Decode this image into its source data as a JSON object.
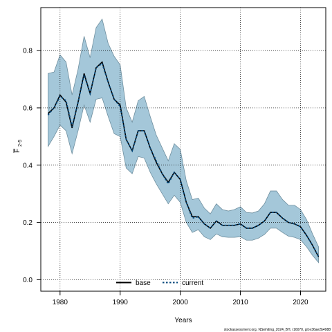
{
  "chart_data": {
    "type": "line",
    "xlabel": "Years",
    "ylabel_main": "F",
    "ylabel_sub": "2-5",
    "xlim": [
      1976.8,
      2024.2
    ],
    "ylim": [
      -0.04,
      0.95
    ],
    "x_ticks": [
      1980,
      1990,
      2000,
      2010,
      2020
    ],
    "x_tick_labels": [
      "1980",
      "1990",
      "2000",
      "2010",
      "2020"
    ],
    "y_ticks": [
      0.0,
      0.2,
      0.4,
      0.6,
      0.8
    ],
    "y_tick_labels": [
      "0.0",
      "0.2",
      "0.4",
      "0.6",
      "0.8"
    ],
    "grid": true,
    "legend_position": "bottom-center",
    "footer_text": "stockassessment.org, NSwhiting_2024_BH, r16070, git:e36ae2b4988",
    "x": [
      1978,
      1979,
      1980,
      1981,
      1982,
      1983,
      1984,
      1985,
      1986,
      1987,
      1988,
      1989,
      1990,
      1991,
      1992,
      1993,
      1994,
      1995,
      1996,
      1997,
      1998,
      1999,
      2000,
      2001,
      2002,
      2003,
      2004,
      2005,
      2006,
      2007,
      2008,
      2009,
      2010,
      2011,
      2012,
      2013,
      2014,
      2015,
      2016,
      2017,
      2018,
      2019,
      2020,
      2021,
      2022,
      2023
    ],
    "series": [
      {
        "name": "base",
        "color": "#000000",
        "values": [
          0.58,
          0.6,
          0.645,
          0.62,
          0.53,
          0.62,
          0.72,
          0.65,
          0.74,
          0.76,
          0.69,
          0.63,
          0.61,
          0.49,
          0.45,
          0.52,
          0.52,
          0.46,
          0.41,
          0.37,
          0.34,
          0.375,
          0.35,
          0.27,
          0.22,
          0.22,
          0.195,
          0.18,
          0.205,
          0.19,
          0.19,
          0.19,
          0.195,
          0.18,
          0.18,
          0.19,
          0.205,
          0.235,
          0.235,
          0.215,
          0.2,
          0.195,
          0.185,
          0.155,
          0.12,
          0.08
        ]
      },
      {
        "name": "current",
        "color": "#00467a",
        "values": [
          0.575,
          0.6,
          0.64,
          0.625,
          0.535,
          0.62,
          0.715,
          0.65,
          0.74,
          0.755,
          0.69,
          0.63,
          0.605,
          0.49,
          0.45,
          0.52,
          0.52,
          0.46,
          0.415,
          0.37,
          0.335,
          0.375,
          0.35,
          0.27,
          0.215,
          0.22,
          0.195,
          0.18,
          0.205,
          0.19,
          0.19,
          0.19,
          0.195,
          0.18,
          0.18,
          0.19,
          0.205,
          0.235,
          0.235,
          0.215,
          0.2,
          0.195,
          0.185,
          0.155,
          0.12,
          0.08
        ]
      }
    ],
    "confidence_band": {
      "color": "#8db9d0",
      "lower": [
        0.465,
        0.5,
        0.54,
        0.52,
        0.44,
        0.52,
        0.61,
        0.55,
        0.63,
        0.635,
        0.57,
        0.51,
        0.5,
        0.39,
        0.37,
        0.43,
        0.425,
        0.375,
        0.335,
        0.3,
        0.265,
        0.295,
        0.27,
        0.2,
        0.165,
        0.175,
        0.15,
        0.14,
        0.16,
        0.15,
        0.148,
        0.148,
        0.15,
        0.138,
        0.138,
        0.145,
        0.158,
        0.18,
        0.18,
        0.165,
        0.152,
        0.148,
        0.14,
        0.115,
        0.085,
        0.06
      ],
      "upper": [
        0.72,
        0.725,
        0.785,
        0.76,
        0.645,
        0.735,
        0.85,
        0.775,
        0.88,
        0.91,
        0.825,
        0.78,
        0.75,
        0.6,
        0.55,
        0.625,
        0.64,
        0.57,
        0.505,
        0.46,
        0.415,
        0.475,
        0.455,
        0.345,
        0.28,
        0.285,
        0.25,
        0.23,
        0.265,
        0.245,
        0.24,
        0.245,
        0.255,
        0.235,
        0.233,
        0.24,
        0.265,
        0.31,
        0.31,
        0.28,
        0.26,
        0.26,
        0.245,
        0.21,
        0.16,
        0.115
      ]
    }
  }
}
